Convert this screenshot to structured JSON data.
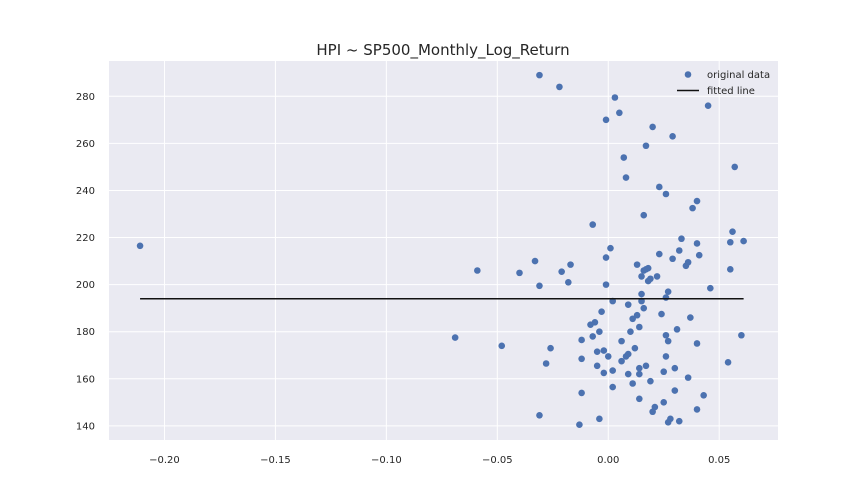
{
  "chart_data": {
    "type": "scatter",
    "title": "HPI ~ SP500_Monthly_Log_Return",
    "xlabel": "",
    "ylabel": "",
    "xlim": [
      -0.225,
      0.0765
    ],
    "ylim": [
      134,
      295
    ],
    "xticks": [
      -0.2,
      -0.15,
      -0.1,
      -0.05,
      0.0,
      0.05
    ],
    "xtick_labels": [
      "−0.20",
      "−0.15",
      "−0.10",
      "−0.05",
      "0.00",
      "0.05"
    ],
    "yticks": [
      140,
      160,
      180,
      200,
      220,
      240,
      260,
      280
    ],
    "ytick_labels": [
      "140",
      "160",
      "180",
      "200",
      "220",
      "240",
      "260",
      "280"
    ],
    "grid": true,
    "legend_position": "top-right",
    "series": [
      {
        "name": "original data",
        "kind": "scatter",
        "color": "#4c72b0",
        "points": [
          [
            -0.211,
            216.5
          ],
          [
            -0.069,
            177.5
          ],
          [
            -0.059,
            206.0
          ],
          [
            -0.048,
            174.0
          ],
          [
            -0.04,
            205.0
          ],
          [
            -0.033,
            210.0
          ],
          [
            -0.031,
            199.5
          ],
          [
            -0.031,
            289.0
          ],
          [
            -0.031,
            144.5
          ],
          [
            -0.028,
            166.5
          ],
          [
            -0.026,
            173.0
          ],
          [
            -0.022,
            284.0
          ],
          [
            -0.021,
            205.5
          ],
          [
            -0.018,
            201.0
          ],
          [
            -0.017,
            208.5
          ],
          [
            -0.013,
            140.5
          ],
          [
            -0.012,
            154.0
          ],
          [
            -0.012,
            176.5
          ],
          [
            -0.012,
            168.5
          ],
          [
            -0.008,
            183.0
          ],
          [
            -0.007,
            225.5
          ],
          [
            -0.007,
            178.0
          ],
          [
            -0.006,
            184.0
          ],
          [
            -0.005,
            171.5
          ],
          [
            -0.005,
            165.5
          ],
          [
            -0.004,
            143.0
          ],
          [
            -0.004,
            180.0
          ],
          [
            -0.003,
            188.5
          ],
          [
            -0.002,
            162.5
          ],
          [
            -0.002,
            172.0
          ],
          [
            -0.001,
            211.5
          ],
          [
            -0.001,
            200.0
          ],
          [
            -0.001,
            270.0
          ],
          [
            0.0,
            169.5
          ],
          [
            0.001,
            215.5
          ],
          [
            0.002,
            163.5
          ],
          [
            0.002,
            156.5
          ],
          [
            0.002,
            193.0
          ],
          [
            0.003,
            279.5
          ],
          [
            0.005,
            273.0
          ],
          [
            0.006,
            167.5
          ],
          [
            0.006,
            176.0
          ],
          [
            0.007,
            254.0
          ],
          [
            0.008,
            169.5
          ],
          [
            0.008,
            245.5
          ],
          [
            0.009,
            170.5
          ],
          [
            0.009,
            162.0
          ],
          [
            0.009,
            191.5
          ],
          [
            0.01,
            180.0
          ],
          [
            0.011,
            185.5
          ],
          [
            0.011,
            158.0
          ],
          [
            0.012,
            173.0
          ],
          [
            0.013,
            208.5
          ],
          [
            0.013,
            187.0
          ],
          [
            0.014,
            182.0
          ],
          [
            0.014,
            151.5
          ],
          [
            0.014,
            164.5
          ],
          [
            0.014,
            162.0
          ],
          [
            0.015,
            203.5
          ],
          [
            0.015,
            196.0
          ],
          [
            0.015,
            193.0
          ],
          [
            0.016,
            229.5
          ],
          [
            0.016,
            190.0
          ],
          [
            0.016,
            206.0
          ],
          [
            0.017,
            206.5
          ],
          [
            0.017,
            165.5
          ],
          [
            0.017,
            259.0
          ],
          [
            0.018,
            201.5
          ],
          [
            0.018,
            207.0
          ],
          [
            0.019,
            202.5
          ],
          [
            0.019,
            159.0
          ],
          [
            0.02,
            146.0
          ],
          [
            0.02,
            267.0
          ],
          [
            0.021,
            148.0
          ],
          [
            0.022,
            203.5
          ],
          [
            0.023,
            241.5
          ],
          [
            0.023,
            213.0
          ],
          [
            0.024,
            187.5
          ],
          [
            0.025,
            163.0
          ],
          [
            0.025,
            150.0
          ],
          [
            0.026,
            194.5
          ],
          [
            0.026,
            238.5
          ],
          [
            0.026,
            178.5
          ],
          [
            0.026,
            169.5
          ],
          [
            0.027,
            197.0
          ],
          [
            0.027,
            176.0
          ],
          [
            0.027,
            141.5
          ],
          [
            0.028,
            143.0
          ],
          [
            0.029,
            263.0
          ],
          [
            0.029,
            211.0
          ],
          [
            0.03,
            164.5
          ],
          [
            0.03,
            155.0
          ],
          [
            0.031,
            181.0
          ],
          [
            0.032,
            214.5
          ],
          [
            0.032,
            142.0
          ],
          [
            0.033,
            219.5
          ],
          [
            0.035,
            208.0
          ],
          [
            0.036,
            209.5
          ],
          [
            0.036,
            160.5
          ],
          [
            0.037,
            186.0
          ],
          [
            0.038,
            232.5
          ],
          [
            0.04,
            235.5
          ],
          [
            0.04,
            217.5
          ],
          [
            0.04,
            175.0
          ],
          [
            0.04,
            147.0
          ],
          [
            0.041,
            212.5
          ],
          [
            0.043,
            153.0
          ],
          [
            0.045,
            276.0
          ],
          [
            0.046,
            198.5
          ],
          [
            0.054,
            167.0
          ],
          [
            0.055,
            206.5
          ],
          [
            0.055,
            218.0
          ],
          [
            0.056,
            222.5
          ],
          [
            0.057,
            250.0
          ],
          [
            0.06,
            178.5
          ],
          [
            0.061,
            218.5
          ]
        ]
      },
      {
        "name": "fitted line",
        "kind": "line",
        "color": "#111111",
        "x": [
          -0.211,
          0.061
        ],
        "y": [
          194.0,
          194.0
        ]
      }
    ]
  }
}
